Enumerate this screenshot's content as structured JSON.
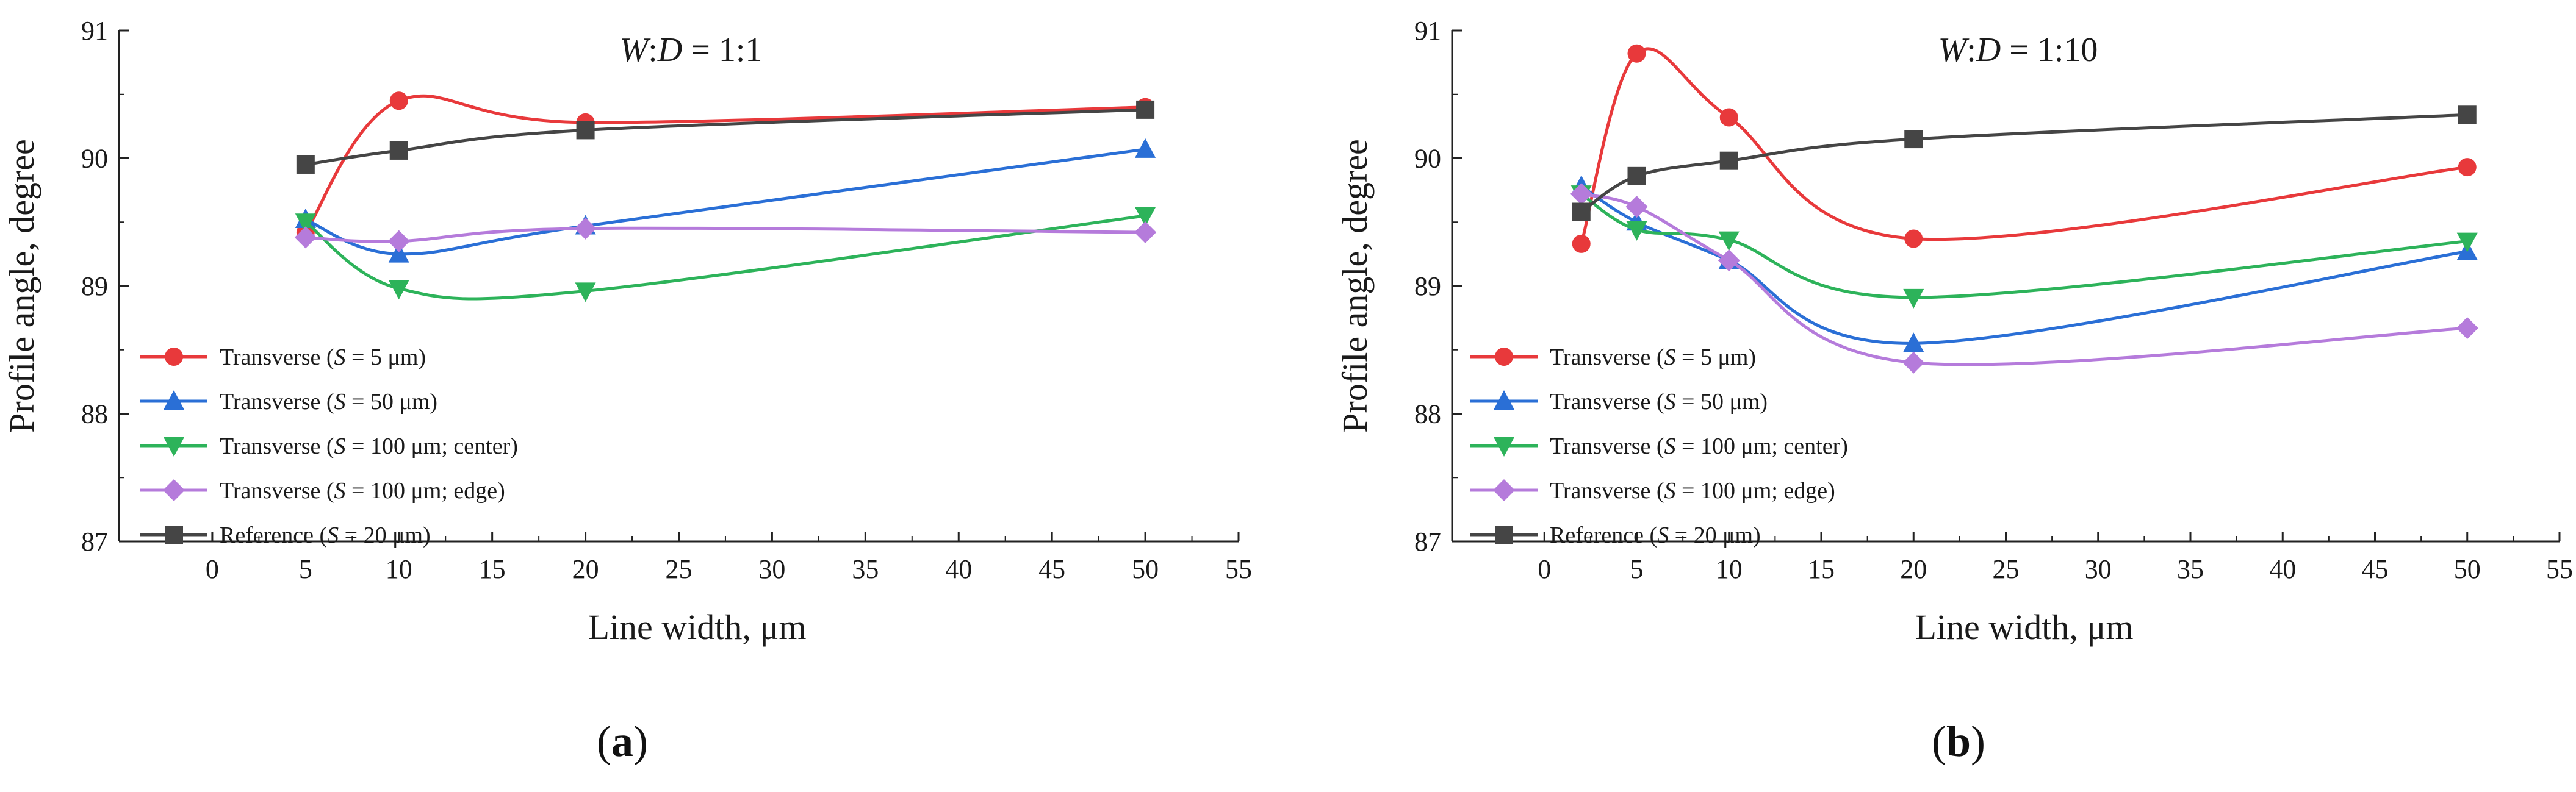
{
  "chart_data": [
    {
      "type": "line",
      "panel_label": "a",
      "title_prefix_italic": "W",
      "title_sep": ":",
      "title_mid_italic": "D",
      "title_suffix": " = 1:1",
      "xlabel": "Line width, μm",
      "ylabel": "Profile angle, degree",
      "xlim": [
        -5,
        55
      ],
      "ylim": [
        87,
        91
      ],
      "xticks": [
        0,
        5,
        10,
        15,
        20,
        25,
        30,
        35,
        40,
        45,
        50,
        55
      ],
      "yticks": [
        87,
        88,
        89,
        90,
        91
      ],
      "legend_position": "bottom-left",
      "series": [
        {
          "name": "Transverse (S = 5 μm)",
          "label_pre": "Transverse (",
          "label_var": "S",
          "label_post": " = 5 μm)",
          "color": "#e8393b",
          "marker": "circle",
          "x": [
            5,
            10,
            20,
            50
          ],
          "y": [
            89.42,
            90.45,
            90.28,
            90.4
          ]
        },
        {
          "name": "Transverse (S = 50 μm)",
          "label_pre": "Transverse (",
          "label_var": "S",
          "label_post": " = 50 μm)",
          "color": "#2a6fd6",
          "marker": "triangle-up",
          "x": [
            5,
            10,
            20,
            50
          ],
          "y": [
            89.52,
            89.25,
            89.47,
            90.07
          ]
        },
        {
          "name": "Transverse (S = 100 μm; center)",
          "label_pre": "Transverse (",
          "label_var": "S",
          "label_post": " = 100 μm; center)",
          "color": "#2db35a",
          "marker": "triangle-down",
          "x": [
            5,
            10,
            20,
            50
          ],
          "y": [
            89.5,
            88.98,
            88.96,
            89.55
          ]
        },
        {
          "name": "Transverse (S = 100 μm; edge)",
          "label_pre": "Transverse (",
          "label_var": "S",
          "label_post": " = 100 μm; edge)",
          "color": "#b57bdb",
          "marker": "diamond",
          "x": [
            5,
            10,
            20,
            50
          ],
          "y": [
            89.38,
            89.35,
            89.45,
            89.42
          ]
        },
        {
          "name": "Reference (S = 20 μm)",
          "label_pre": "Reference (",
          "label_var": "S",
          "label_post": " = 20 μm)",
          "color": "#454545",
          "marker": "square",
          "x": [
            5,
            10,
            20,
            50
          ],
          "y": [
            89.95,
            90.06,
            90.22,
            90.38
          ]
        }
      ]
    },
    {
      "type": "line",
      "panel_label": "b",
      "title_prefix_italic": "W",
      "title_sep": ":",
      "title_mid_italic": "D",
      "title_suffix": " = 1:10",
      "xlabel": "Line width, μm",
      "ylabel": "Profile angle, degree",
      "xlim": [
        -5,
        55
      ],
      "ylim": [
        87,
        91
      ],
      "xticks": [
        0,
        5,
        10,
        15,
        20,
        25,
        30,
        35,
        40,
        45,
        50,
        55
      ],
      "yticks": [
        87,
        88,
        89,
        90,
        91
      ],
      "legend_position": "bottom-left",
      "series": [
        {
          "name": "Transverse (S = 5 μm)",
          "label_pre": "Transverse (",
          "label_var": "S",
          "label_post": " = 5 μm)",
          "color": "#e8393b",
          "marker": "circle",
          "x": [
            2,
            5,
            10,
            20,
            50
          ],
          "y": [
            89.33,
            90.82,
            90.32,
            89.37,
            89.93
          ]
        },
        {
          "name": "Transverse (S = 50 μm)",
          "label_pre": "Transverse (",
          "label_var": "S",
          "label_post": " = 50 μm)",
          "color": "#2a6fd6",
          "marker": "triangle-up",
          "x": [
            2,
            5,
            10,
            20,
            50
          ],
          "y": [
            89.78,
            89.5,
            89.2,
            88.55,
            89.27
          ]
        },
        {
          "name": "Transverse (S = 100 μm; center)",
          "label_pre": "Transverse (",
          "label_var": "S",
          "label_post": " = 100 μm; center)",
          "color": "#2db35a",
          "marker": "triangle-down",
          "x": [
            2,
            5,
            10,
            20,
            50
          ],
          "y": [
            89.72,
            89.44,
            89.36,
            88.91,
            89.35
          ]
        },
        {
          "name": "Transverse (S = 100 μm; edge)",
          "label_pre": "Transverse (",
          "label_var": "S",
          "label_post": " = 100 μm; edge)",
          "color": "#b57bdb",
          "marker": "diamond",
          "x": [
            2,
            5,
            10,
            20,
            50
          ],
          "y": [
            89.72,
            89.62,
            89.2,
            88.4,
            88.67
          ]
        },
        {
          "name": "Reference (S = 20 μm)",
          "label_pre": "Reference (",
          "label_var": "S",
          "label_post": " = 20 μm)",
          "color": "#454545",
          "marker": "square",
          "x": [
            2,
            5,
            10,
            20,
            50
          ],
          "y": [
            89.58,
            89.86,
            89.98,
            90.15,
            90.34
          ]
        }
      ]
    }
  ]
}
